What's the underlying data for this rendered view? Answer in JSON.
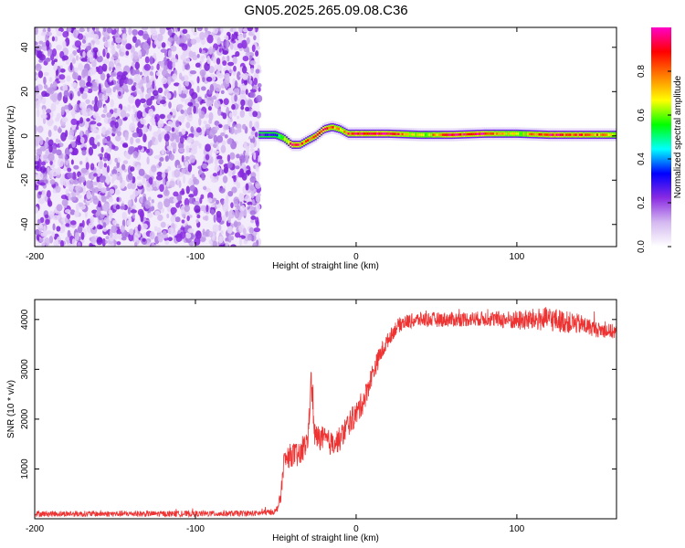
{
  "figure": {
    "title": "GN05.2025.265.09.08.C36"
  },
  "chart_data": [
    {
      "type": "heatmap",
      "xlabel": "Height of straight line (km)",
      "ylabel": "Frequency (Hz)",
      "xlim": [
        -200,
        162
      ],
      "ylim": [
        -50,
        49
      ],
      "xticks": [
        -200,
        -100,
        0,
        100
      ],
      "yticks": [
        -40,
        -20,
        0,
        20,
        40
      ],
      "grid": false,
      "noise_region": {
        "x_range": [
          -200,
          -60
        ],
        "description_free": true
      },
      "ridge": {
        "x": [
          -60,
          -50,
          -45,
          -40,
          -35,
          -30,
          -25,
          -20,
          -15,
          -10,
          -5,
          0,
          20,
          40,
          60,
          80,
          100,
          120,
          140,
          162
        ],
        "y": [
          0.5,
          0.5,
          -1,
          -4,
          -4,
          -2,
          0,
          3,
          4,
          3,
          1,
          1,
          1,
          0.5,
          0.5,
          1,
          1,
          0.5,
          0.5,
          0.5
        ],
        "amplitude": [
          0.25,
          0.3,
          0.6,
          0.9,
          0.85,
          0.8,
          0.85,
          0.9,
          0.8,
          0.7,
          0.85,
          0.95,
          0.95,
          0.6,
          0.9,
          0.95,
          0.6,
          0.9,
          0.85,
          0.7
        ]
      },
      "colorbar": {
        "label": "Normalized spectral amplitude",
        "ticks": [
          0.0,
          0.2,
          0.4,
          0.6,
          0.8
        ],
        "range": [
          0,
          1
        ],
        "colors": [
          "#ffffff",
          "#d4b8f0",
          "#8a2be2",
          "#0000ff",
          "#00ffff",
          "#00ff00",
          "#ffff00",
          "#ff8000",
          "#ff0000",
          "#ff00c8"
        ]
      }
    },
    {
      "type": "line",
      "xlabel": "Height of straight line (km)",
      "ylabel": "SNR (10 * v/v)",
      "xlim": [
        -200,
        162
      ],
      "ylim": [
        0,
        4400
      ],
      "xticks": [
        -200,
        -100,
        0,
        100
      ],
      "yticks": [
        1000,
        2000,
        3000,
        4000
      ],
      "grid": false,
      "series": [
        {
          "color": "#ee3333",
          "x": [
            -200,
            -150,
            -100,
            -60,
            -50,
            -47,
            -45,
            -40,
            -35,
            -30,
            -28,
            -26,
            -25,
            -20,
            -15,
            -10,
            -5,
            0,
            5,
            10,
            15,
            20,
            25,
            30,
            40,
            50,
            60,
            80,
            100,
            120,
            140,
            150,
            162
          ],
          "y": [
            100,
            100,
            100,
            110,
            150,
            400,
            1150,
            1300,
            1250,
            1600,
            2800,
            1700,
            1650,
            1600,
            1500,
            1600,
            1900,
            2100,
            2400,
            2900,
            3300,
            3600,
            3850,
            3950,
            4000,
            4000,
            4000,
            4020,
            3980,
            4010,
            3900,
            3800,
            3750
          ],
          "noise": [
            60,
            60,
            60,
            60,
            60,
            150,
            200,
            250,
            250,
            250,
            250,
            250,
            250,
            250,
            250,
            250,
            250,
            250,
            250,
            200,
            200,
            150,
            150,
            150,
            150,
            150,
            150,
            150,
            200,
            250,
            200,
            150,
            150
          ]
        }
      ]
    }
  ]
}
